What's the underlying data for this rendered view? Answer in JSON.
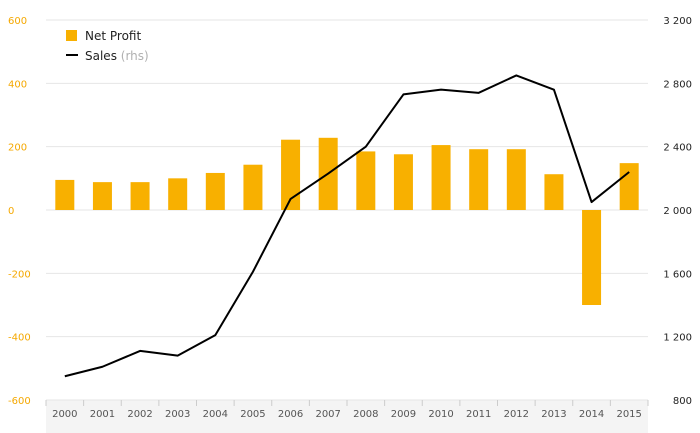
{
  "chart_data": {
    "type": "bar",
    "categories": [
      "2000",
      "2001",
      "2002",
      "2003",
      "2004",
      "2005",
      "2006",
      "2007",
      "2008",
      "2009",
      "2010",
      "2011",
      "2012",
      "2013",
      "2014",
      "2015"
    ],
    "series": [
      {
        "name": "Net Profit",
        "type": "bar",
        "axis": "left",
        "color": "#f8b000",
        "values": [
          95,
          88,
          88,
          100,
          117,
          143,
          222,
          228,
          185,
          176,
          205,
          192,
          192,
          113,
          -300,
          148
        ]
      },
      {
        "name": "Sales",
        "type": "line",
        "axis": "right",
        "color": "#000000",
        "values": [
          950,
          1010,
          1110,
          1080,
          1210,
          1610,
          2070,
          2230,
          2400,
          2730,
          2760,
          2740,
          2850,
          2760,
          2050,
          2240
        ]
      }
    ],
    "legend": [
      {
        "label": "Net Profit",
        "suffix": ""
      },
      {
        "label": "Sales",
        "suffix": "(rhs)"
      }
    ],
    "legend_position": "top-left",
    "y_left": {
      "lim": [
        -600,
        600
      ],
      "ticks": [
        "600",
        "400",
        "200",
        "0",
        "-200",
        "-400",
        "-600"
      ],
      "color": "#f5a800"
    },
    "y_right": {
      "lim": [
        800,
        3200
      ],
      "ticks": [
        "3 200",
        "2 800",
        "2 400",
        "2 000",
        "1 600",
        "1 200",
        "800"
      ]
    },
    "grid": true,
    "title": "",
    "xlabel": "",
    "ylabel": ""
  }
}
